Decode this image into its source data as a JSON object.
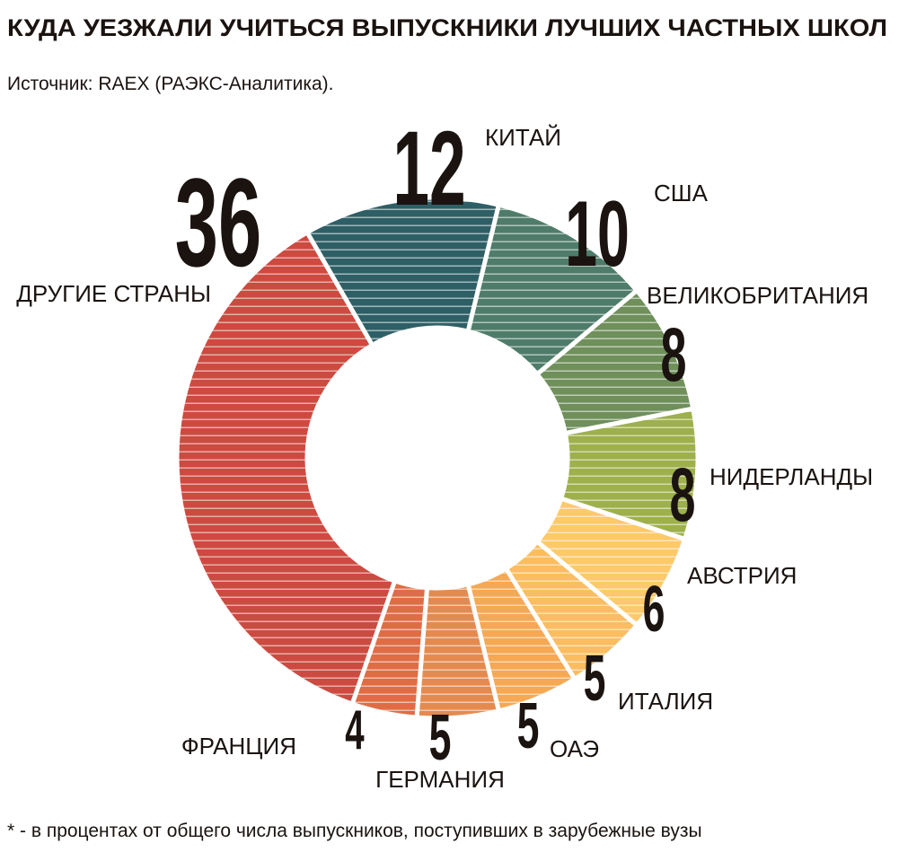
{
  "chart_data": {
    "type": "donut",
    "title": "КУДА УЕЗЖАЛИ УЧИТЬСЯ ВЫПУСКНИКИ ЛУЧШИХ ЧАСТНЫХ ШКОЛ",
    "subtitle": "Источник: RAEX (РАЭКС-Аналитика).",
    "note": "* - в процентах от общего числа выпускников, поступивших в зарубежные вузы",
    "categories": [
      "КИТАЙ",
      "США",
      "ВЕЛИКОБРИТАНИЯ",
      "НИДЕРЛАНДЫ",
      "АВСТРИЯ",
      "ИТАЛИЯ",
      "ОАЭ",
      "ГЕРМАНИЯ",
      "ФРАНЦИЯ",
      "ДРУГИЕ СТРАНЫ"
    ],
    "values": [
      12,
      10,
      8,
      8,
      6,
      5,
      5,
      5,
      4,
      36
    ],
    "colors": [
      "#2f5f66",
      "#4f7c6a",
      "#6f8f5b",
      "#9db04c",
      "#fdc96b",
      "#fbbd60",
      "#f6a853",
      "#e58a4f",
      "#e06c44",
      "#cd4a40"
    ]
  }
}
